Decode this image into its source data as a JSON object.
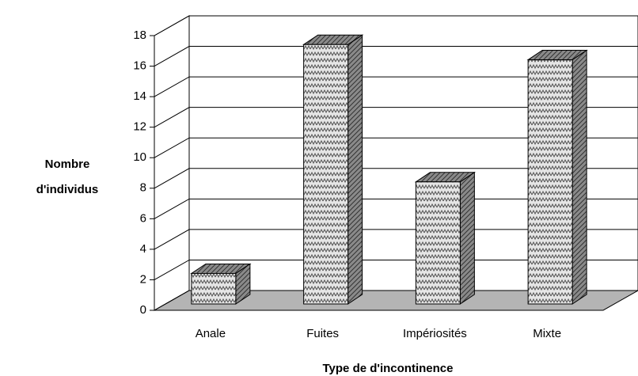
{
  "chart_data": {
    "type": "bar3d",
    "categories": [
      "Anale",
      "Fuites",
      "Impériosités",
      "Mixte"
    ],
    "values": [
      2,
      17,
      8,
      16
    ],
    "ylim": [
      0,
      18
    ],
    "yticks": [
      0,
      2,
      4,
      6,
      8,
      10,
      12,
      14,
      16,
      18
    ],
    "y_label": "Nombre d'individus",
    "x_label": "Type de d'incontinence",
    "grid": true,
    "color": "#d8d8d8"
  }
}
